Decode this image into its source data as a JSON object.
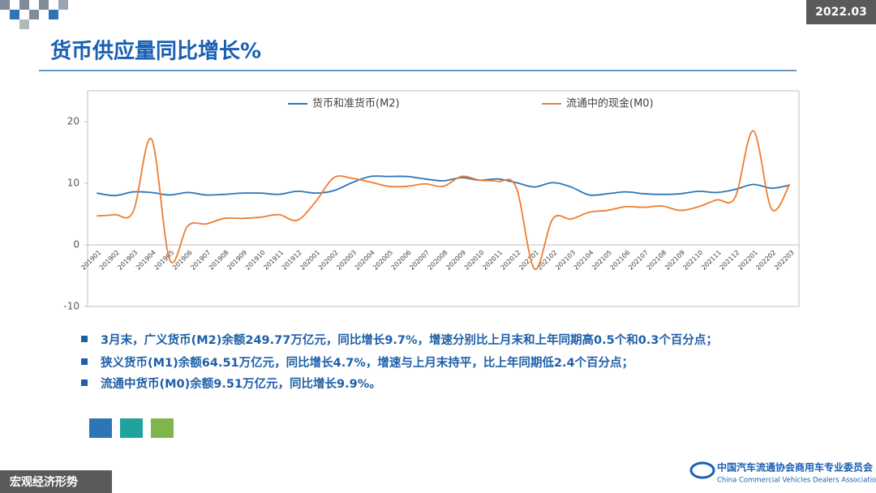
{
  "slide": {
    "date": "2022.03",
    "title": "货币供应量同比增长%",
    "bullets": [
      "3月末，广义货币(M2)余额249.77万亿元，同比增长9.7%，增速分别比上月末和上年同期高0.5个和0.3个百分点；",
      "狭义货币(M1)余额64.51万亿元，同比增长4.7%，增速与上月末持平，比上年同期低2.4个百分点；",
      "流通中货币(M0)余额9.51万亿元，同比增长9.9%。"
    ],
    "section": "宏观经济形势",
    "org_cn": "中国汽车流通协会商用车专业委员会",
    "org_en": "China Commercial Vehicles Dealers Association"
  },
  "chart_data": {
    "type": "line",
    "categories": [
      "201901",
      "201902",
      "201903",
      "201904",
      "201905",
      "201906",
      "201907",
      "201908",
      "201909",
      "201910",
      "201911",
      "201912",
      "202001",
      "202002",
      "202003",
      "202004",
      "202005",
      "202006",
      "202007",
      "202008",
      "202009",
      "202010",
      "202011",
      "202012",
      "202101",
      "202102",
      "202103",
      "202104",
      "202105",
      "202106",
      "202107",
      "202108",
      "202109",
      "202110",
      "202111",
      "202112",
      "202201",
      "202202",
      "202203"
    ],
    "series": [
      {
        "name": "货币和准货币(M2)",
        "color": "#2e75b6",
        "values": [
          8.4,
          8.0,
          8.6,
          8.5,
          8.1,
          8.5,
          8.1,
          8.2,
          8.4,
          8.4,
          8.2,
          8.7,
          8.4,
          8.8,
          10.1,
          11.1,
          11.1,
          11.1,
          10.7,
          10.4,
          10.9,
          10.5,
          10.7,
          10.1,
          9.4,
          10.1,
          9.4,
          8.1,
          8.3,
          8.6,
          8.3,
          8.2,
          8.3,
          8.7,
          8.5,
          9.0,
          9.8,
          9.2,
          9.7
        ]
      },
      {
        "name": "流通中的现金(M0)",
        "color": "#ed7d31",
        "values": [
          4.7,
          4.9,
          5.4,
          17.2,
          -2.4,
          3.1,
          3.4,
          4.3,
          4.3,
          4.5,
          4.9,
          4.0,
          7.0,
          10.9,
          10.8,
          10.2,
          9.5,
          9.5,
          9.9,
          9.5,
          11.1,
          10.5,
          10.3,
          9.3,
          -3.9,
          4.2,
          4.2,
          5.3,
          5.6,
          6.2,
          6.1,
          6.3,
          5.6,
          6.2,
          7.3,
          7.7,
          18.5,
          5.8,
          9.9
        ]
      }
    ],
    "ylim": [
      -10,
      25
    ],
    "yticks": [
      -10,
      0,
      10,
      20
    ],
    "grid": false
  }
}
